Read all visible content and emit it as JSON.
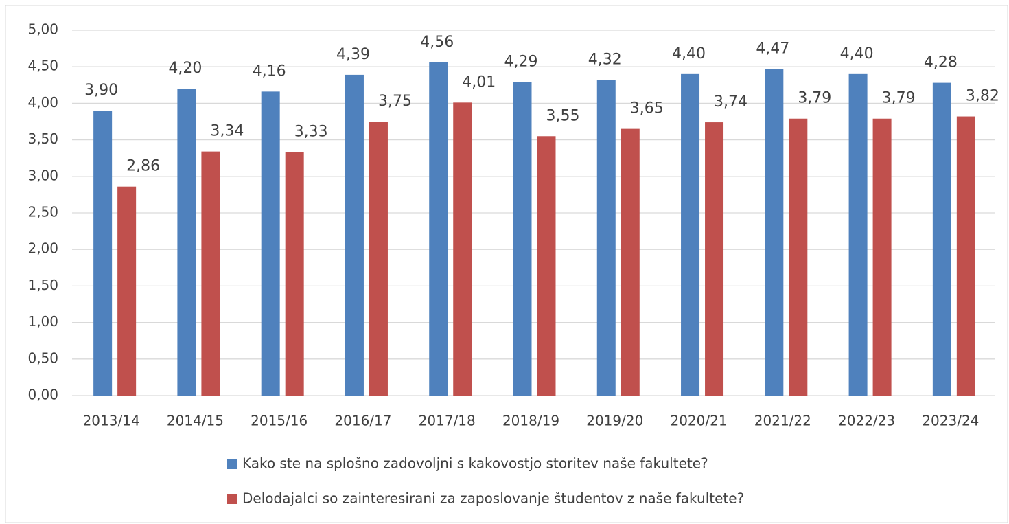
{
  "chart_data": {
    "type": "bar",
    "categories": [
      "2013/14",
      "2014/15",
      "2015/16",
      "2016/17",
      "2017/18",
      "2018/19",
      "2019/20",
      "2020/21",
      "2021/22",
      "2022/23",
      "2023/24"
    ],
    "series": [
      {
        "name": "Kako ste na splošno zadovoljni s kakovostjo storitev naše fakultete?",
        "color": "#4f81bd",
        "values": [
          3.9,
          4.2,
          4.16,
          4.39,
          4.56,
          4.29,
          4.32,
          4.4,
          4.47,
          4.4,
          4.28
        ],
        "value_labels": [
          "3,90",
          "4,20",
          "4,16",
          "4,39",
          "4,56",
          "4,29",
          "4,32",
          "4,40",
          "4,47",
          "4,40",
          "4,28"
        ]
      },
      {
        "name": "Delodajalci so zainteresirani za zaposlovanje študentov z naše fakultete?",
        "color": "#c0504d",
        "values": [
          2.86,
          3.34,
          3.33,
          3.75,
          4.01,
          3.55,
          3.65,
          3.74,
          3.79,
          3.79,
          3.82
        ],
        "value_labels": [
          "2,86",
          "3,34",
          "3,33",
          "3,75",
          "4,01",
          "3,55",
          "3,65",
          "3,74",
          "3,79",
          "3,79",
          "3,82"
        ]
      }
    ],
    "ylim": [
      0,
      5
    ],
    "yticks": [
      {
        "value": 0,
        "label": "0,00"
      },
      {
        "value": 0.5,
        "label": "0,50"
      },
      {
        "value": 1,
        "label": "1,00"
      },
      {
        "value": 1.5,
        "label": "1,50"
      },
      {
        "value": 2,
        "label": "2,00"
      },
      {
        "value": 2.5,
        "label": "2,50"
      },
      {
        "value": 3,
        "label": "3,00"
      },
      {
        "value": 3.5,
        "label": "3,50"
      },
      {
        "value": 4,
        "label": "4,00"
      },
      {
        "value": 4.5,
        "label": "4,50"
      },
      {
        "value": 5,
        "label": "5,00"
      }
    ],
    "grid": true,
    "legend": "bottom"
  }
}
